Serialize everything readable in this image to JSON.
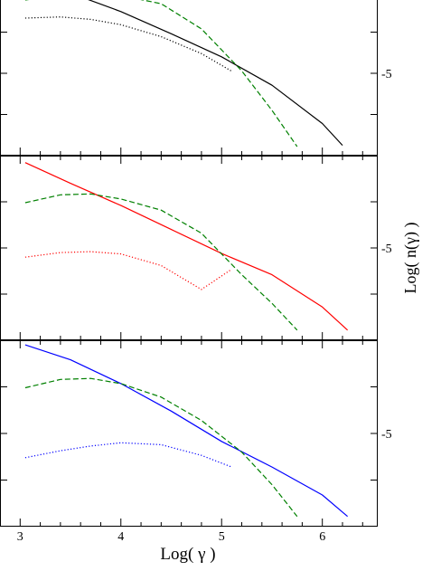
{
  "chart_data": {
    "type": "line",
    "layout": "three vertically stacked panels sharing the x axis; y tick labels on the right side",
    "xlabel": "Log( γ )",
    "ylabel": "Log(  n(γ)  )",
    "xlim": [
      2.8,
      6.55
    ],
    "x_ticks": [
      3,
      4,
      5,
      6
    ],
    "x_minor_step": 0.2,
    "ylim": [
      -7.0,
      -3.0
    ],
    "y_tick_label_value": -5,
    "y_tick_label": "-5",
    "y_ticks": [
      -3,
      -4,
      -5,
      -6,
      -7
    ],
    "panels": [
      {
        "ylim": [
          -7.0,
          -3.0
        ],
        "series": [
          {
            "color": "#000000",
            "dash": "solid",
            "x": [
              2.8,
              3.5,
              4.0,
              4.5,
              5.0,
              5.5,
              6.0,
              6.2
            ],
            "y": [
              -2.73,
              -3.05,
              -3.5,
              -4.04,
              -4.6,
              -5.29,
              -6.22,
              -6.75
            ]
          },
          {
            "color": "#008000",
            "dash": "dashed",
            "x": [
              3.05,
              3.4,
              3.7,
              4.0,
              4.4,
              4.8,
              5.2,
              5.5,
              5.75
            ],
            "y": [
              -3.22,
              -3.1,
              -3.07,
              -3.11,
              -3.31,
              -3.92,
              -4.94,
              -5.9,
              -6.78
            ]
          },
          {
            "color": "#000000",
            "dash": "dotted",
            "x": [
              3.05,
              3.4,
              3.7,
              4.0,
              4.4,
              4.8,
              5.1
            ],
            "y": [
              -3.66,
              -3.63,
              -3.69,
              -3.82,
              -4.11,
              -4.52,
              -4.95
            ]
          }
        ]
      },
      {
        "ylim": [
          -7.0,
          -3.0
        ],
        "series": [
          {
            "color": "#ff0000",
            "dash": "solid",
            "x": [
              3.05,
              3.5,
              4.0,
              4.5,
              5.0,
              5.5,
              6.0,
              6.25
            ],
            "y": [
              -3.15,
              -3.6,
              -4.08,
              -4.6,
              -5.12,
              -5.58,
              -6.28,
              -6.78
            ]
          },
          {
            "color": "#008000",
            "dash": "dashed",
            "x": [
              3.05,
              3.4,
              3.7,
              4.0,
              4.4,
              4.8,
              5.2,
              5.5,
              5.75
            ],
            "y": [
              -4.02,
              -3.85,
              -3.83,
              -3.94,
              -4.18,
              -4.68,
              -5.58,
              -6.2,
              -6.78
            ]
          },
          {
            "color": "#ff0000",
            "dash": "dotted",
            "x": [
              3.05,
              3.4,
              3.7,
              4.0,
              4.4,
              4.8,
              5.1
            ],
            "y": [
              -5.2,
              -5.1,
              -5.08,
              -5.13,
              -5.38,
              -5.9,
              -5.46
            ]
          }
        ]
      },
      {
        "ylim": [
          -7.0,
          -3.0
        ],
        "series": [
          {
            "color": "#0000ff",
            "dash": "solid",
            "x": [
              3.05,
              3.5,
              4.0,
              4.5,
              5.0,
              5.5,
              6.0,
              6.25
            ],
            "y": [
              -3.1,
              -3.42,
              -3.93,
              -4.52,
              -5.17,
              -5.72,
              -6.32,
              -6.78
            ]
          },
          {
            "color": "#008000",
            "dash": "dashed",
            "x": [
              3.05,
              3.4,
              3.7,
              4.0,
              4.4,
              4.8,
              5.2,
              5.5,
              5.75
            ],
            "y": [
              -4.02,
              -3.84,
              -3.82,
              -3.93,
              -4.22,
              -4.72,
              -5.4,
              -6.1,
              -6.78
            ]
          },
          {
            "color": "#0000ff",
            "dash": "dotted",
            "x": [
              3.05,
              3.4,
              3.7,
              4.0,
              4.4,
              4.8,
              5.1
            ],
            "y": [
              -5.52,
              -5.37,
              -5.27,
              -5.2,
              -5.24,
              -5.47,
              -5.72
            ]
          }
        ]
      }
    ]
  }
}
